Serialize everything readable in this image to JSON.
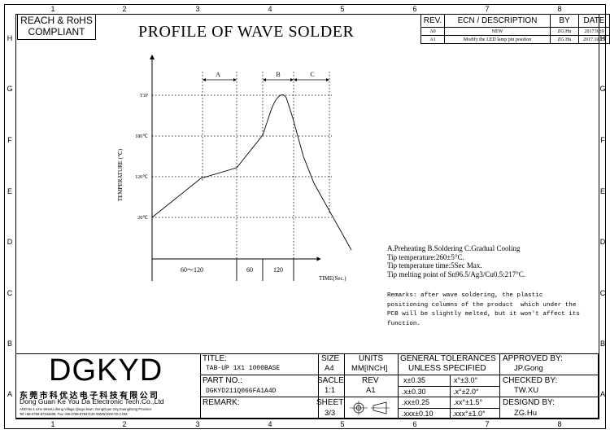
{
  "title": "PROFILE OF WAVE SOLDER",
  "compliance": [
    "REACH & RoHS",
    "COMPLIANT"
  ],
  "zones": {
    "top": [
      "1",
      "2",
      "3",
      "4",
      "5",
      "6",
      "7",
      "8"
    ],
    "side": [
      "H",
      "G",
      "F",
      "E",
      "D",
      "C",
      "B",
      "A"
    ]
  },
  "revision_table": {
    "headers": [
      "REV.",
      "ECN / DESCRIPTION",
      "BY",
      "DATE"
    ],
    "rows": [
      [
        "A0",
        "NEW",
        "ZG.Hu",
        "2017.9.19"
      ],
      [
        "A1",
        "Modify the LED lamp pin position",
        "ZG.Hu",
        "2017.10.25"
      ]
    ]
  },
  "chart": {
    "ylabel": "TEMPERATURE (℃)",
    "xlabel": "TIME(Sec.)",
    "y_ticks": [
      "T1P",
      "180℃",
      "120℃",
      "20℃"
    ],
    "phases": [
      "A",
      "B",
      "C"
    ],
    "durations": [
      "60～120",
      "60",
      "120"
    ]
  },
  "notes": {
    "phases_legend": "A.Preheating  B.Soldering  C.Gradual Cooling",
    "tip_temp": "Tip temperature:260±5°C.",
    "tip_time": "Tip temperature time:5Sec Max.",
    "melting_point": "Tip melting point of Sn96.5/Ag3/Cu0.5:217°C.",
    "remarks": [
      "Remarks: after wave soldering, the plastic",
      "positioning columns of the product  which under the",
      "PCB will be slightly melted, but it won't affect its",
      "function."
    ]
  },
  "company": {
    "logo": "DGKYD",
    "cn_name": "东莞市科优达电子科技有限公司",
    "en_name": "Dong Guan Ke You Da Electronic Tech.Co.,Ltd",
    "address": "ADD:No.1 Lihe Street,Liheng Village,Qingxi town, DongGuan City,GuangDong Province",
    "contact": "Tel:+86-0769-87334608; Fax:+86-0769-87847129  WWW.DGKYD.COM"
  },
  "title_block": {
    "title_label": "TITLE:",
    "title_value": "TAB-UP 1X1 1000BASE",
    "part_label": "PART NO.:",
    "part_value": "DGKYD211Q066FA1A4D",
    "remark_label": "REMARK:",
    "size_label": "SIZE",
    "size_value": "A4",
    "units_label": "UNITS",
    "units_value": "MM[INCH]",
    "scale_label": "SACLE",
    "scale_value": "1:1",
    "rev_label": "REV",
    "rev_value": "A1",
    "sheet_label": "SHEET",
    "sheet_value": "3/3",
    "tol_title1": "GENERAL TOLERANCES",
    "tol_title2": "UNLESS SPECIFIED",
    "tolerances": [
      [
        "x±0.35",
        "x°±3.0°"
      ],
      [
        ".x±0.30",
        ".x°±2.0°"
      ],
      [
        ".xx±0.25",
        ".xx°±1.5°"
      ],
      [
        ".xxx±0.10",
        ".xxx°±1.0°"
      ]
    ],
    "approved_label": "APPROVED BY:",
    "approved_value": "JP.Gong",
    "checked_label": "CHECKED BY:",
    "checked_value": "TW.XU",
    "designed_label": "DESIGND BY:",
    "designed_value": "ZG.Hu"
  }
}
